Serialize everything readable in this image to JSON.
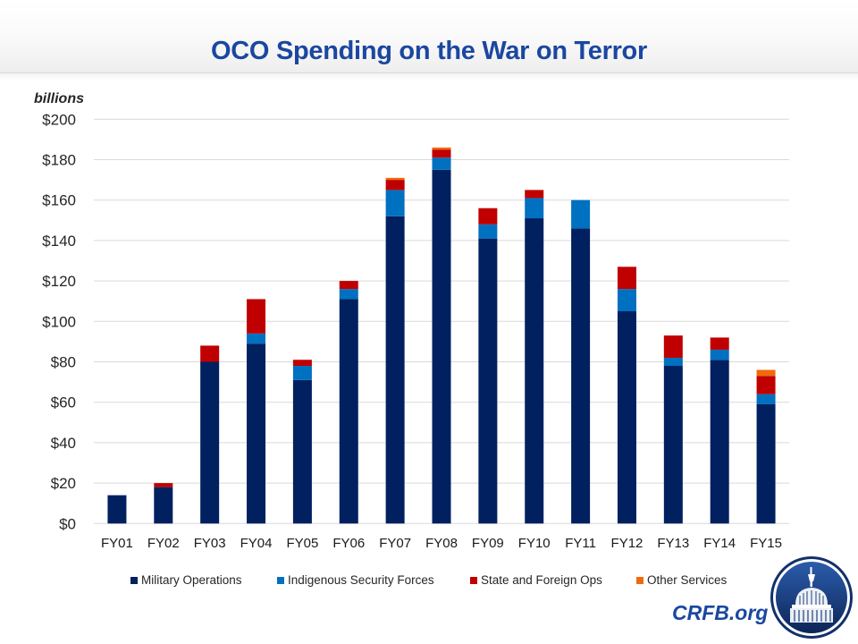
{
  "header": {
    "title": "OCO Spending on the War on Terror"
  },
  "chart_data": {
    "type": "bar",
    "stacked": true,
    "title": "OCO Spending on the War on Terror",
    "ylabel": "billions",
    "xlabel": "",
    "ylim": [
      0,
      200
    ],
    "ytick_step": 20,
    "yticks": [
      "$0",
      "$20",
      "$40",
      "$60",
      "$80",
      "$100",
      "$120",
      "$140",
      "$160",
      "$180",
      "$200"
    ],
    "grid": true,
    "legend_position": "bottom",
    "categories": [
      "FY01",
      "FY02",
      "FY03",
      "FY04",
      "FY05",
      "FY06",
      "FY07",
      "FY08",
      "FY09",
      "FY10",
      "FY11",
      "FY12",
      "FY13",
      "FY14",
      "FY15"
    ],
    "series": [
      {
        "name": "Military Operations",
        "color": "#002060",
        "values": [
          14,
          18,
          80,
          89,
          71,
          111,
          152,
          175,
          141,
          151,
          146,
          105,
          78,
          81,
          59
        ]
      },
      {
        "name": "Indigenous Security Forces",
        "color": "#0070c0",
        "values": [
          0,
          0,
          0,
          5,
          7,
          5,
          13,
          6,
          7,
          10,
          14,
          11,
          4,
          5,
          5
        ]
      },
      {
        "name": "State and Foreign Ops",
        "color": "#c00000",
        "values": [
          0,
          2,
          8,
          17,
          3,
          4,
          5,
          4,
          8,
          4,
          0,
          11,
          11,
          6,
          9
        ]
      },
      {
        "name": "Other Services",
        "color": "#f06a0a",
        "values": [
          0,
          0,
          0,
          0,
          0,
          0,
          1,
          1,
          0,
          0,
          0,
          0,
          0,
          0,
          3
        ]
      }
    ]
  },
  "branding": {
    "site": "CRFB.org",
    "logo_icon": "capitol-dome-logo"
  }
}
